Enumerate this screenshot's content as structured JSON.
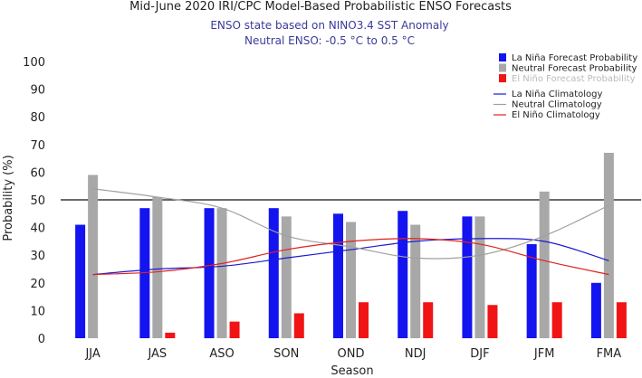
{
  "chart_data": {
    "type": "bar",
    "title": "Mid-June 2020 IRI/CPC Model-Based Probabilistic ENSO Forecasts",
    "subtitle_lines": [
      "ENSO state based on NINO3.4 SST Anomaly",
      "Neutral ENSO: -0.5 °C to 0.5 °C"
    ],
    "xlabel": "Season",
    "ylabel": "Probability (%)",
    "ylim": [
      0,
      100
    ],
    "yticks": [
      0,
      10,
      20,
      30,
      40,
      50,
      60,
      70,
      80,
      90,
      100
    ],
    "reference_line": 50,
    "categories": [
      "JJA",
      "JAS",
      "ASO",
      "SON",
      "OND",
      "NDJ",
      "DJF",
      "JFM",
      "FMA"
    ],
    "series": [
      {
        "name": "La Niña Forecast Probability",
        "color": "#1414f0",
        "values": [
          41,
          47,
          47,
          47,
          45,
          46,
          44,
          34,
          20
        ]
      },
      {
        "name": "Neutral Forecast Probability",
        "color": "#a8a8a8",
        "values": [
          59,
          51,
          47,
          44,
          42,
          41,
          44,
          53,
          67
        ]
      },
      {
        "name": "El Niño Forecast Probability",
        "color": "#f01414",
        "values": [
          0,
          2,
          6,
          9,
          13,
          13,
          12,
          13,
          13
        ]
      }
    ],
    "climatology": [
      {
        "name": "La Niña Climatology",
        "color": "#1a1ad0",
        "values": [
          23,
          25,
          26,
          29,
          32,
          35,
          36,
          35,
          28
        ]
      },
      {
        "name": "Neutral Climatology",
        "color": "#a0a0a0",
        "values": [
          54,
          51,
          47,
          37,
          33,
          29,
          30,
          37,
          48
        ]
      },
      {
        "name": "El Niño Climatology",
        "color": "#e02020",
        "values": [
          23,
          24,
          27,
          32,
          35,
          36,
          34,
          28,
          23
        ]
      }
    ],
    "legend_position": "top-right"
  }
}
